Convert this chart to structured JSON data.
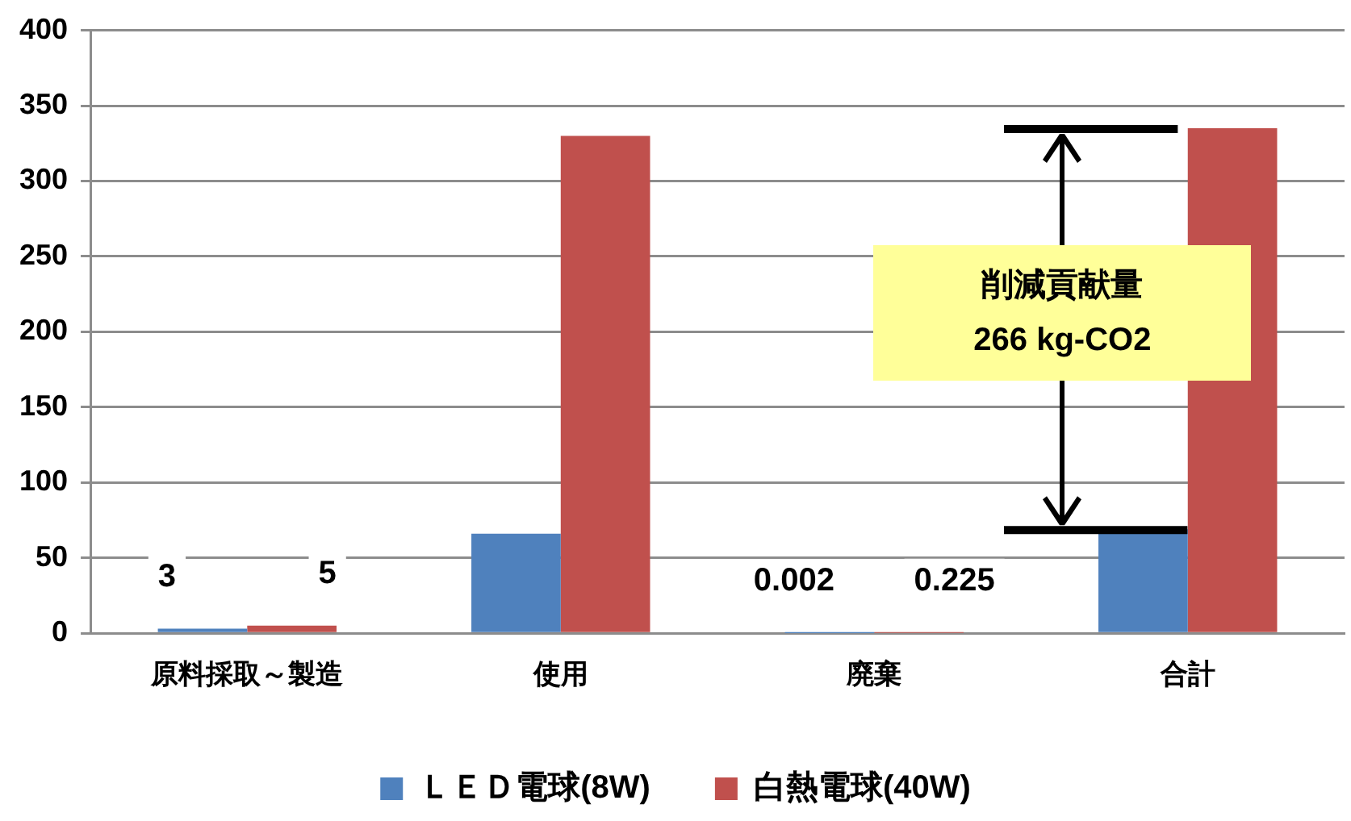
{
  "chart_data": {
    "type": "bar",
    "categories": [
      "原料採取～製造",
      "使用",
      "廃棄",
      "合計"
    ],
    "series": [
      {
        "name": "ＬＥＤ電球(8W)",
        "color": "#4f81bd",
        "values": [
          3,
          66,
          0.002,
          69
        ],
        "value_labels": [
          "3",
          null,
          "0.002",
          null
        ]
      },
      {
        "name": "白熱電球(40W)",
        "color": "#c0504d",
        "values": [
          5,
          330,
          0.225,
          335
        ],
        "value_labels": [
          "5",
          null,
          "0.225",
          null
        ]
      }
    ],
    "ylim": [
      0,
      400
    ],
    "yticks": [
      0,
      50,
      100,
      150,
      200,
      250,
      300,
      350,
      400
    ],
    "grid": "y",
    "legend": "bottom",
    "annotations": [
      "削減貢献量\n266 kg-CO2"
    ]
  }
}
